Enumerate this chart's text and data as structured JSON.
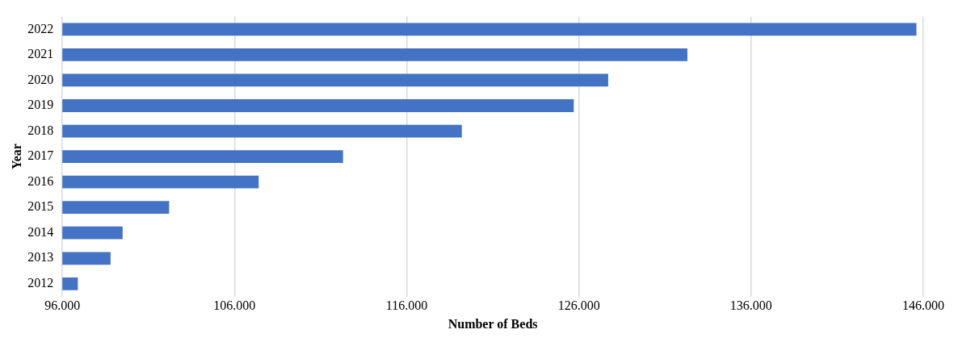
{
  "chart_data": {
    "type": "bar",
    "orientation": "horizontal",
    "xlabel": "Number of Beds",
    "ylabel": "Year",
    "categories": [
      "2022",
      "2021",
      "2020",
      "2019",
      "2018",
      "2017",
      "2016",
      "2015",
      "2014",
      "2013",
      "2012"
    ],
    "values": [
      145600,
      132300,
      127700,
      125700,
      119200,
      112300,
      107400,
      102200,
      99500,
      98800,
      96900
    ],
    "color": "#4472c4",
    "xlim": [
      96000,
      146000
    ],
    "xticks": [
      {
        "value": 96000,
        "label": "96.000"
      },
      {
        "value": 106000,
        "label": "106.000"
      },
      {
        "value": 116000,
        "label": "116.000"
      },
      {
        "value": 126000,
        "label": "126.000"
      },
      {
        "value": 136000,
        "label": "136.000"
      },
      {
        "value": 146000,
        "label": "146.000"
      }
    ],
    "grid": "x"
  }
}
